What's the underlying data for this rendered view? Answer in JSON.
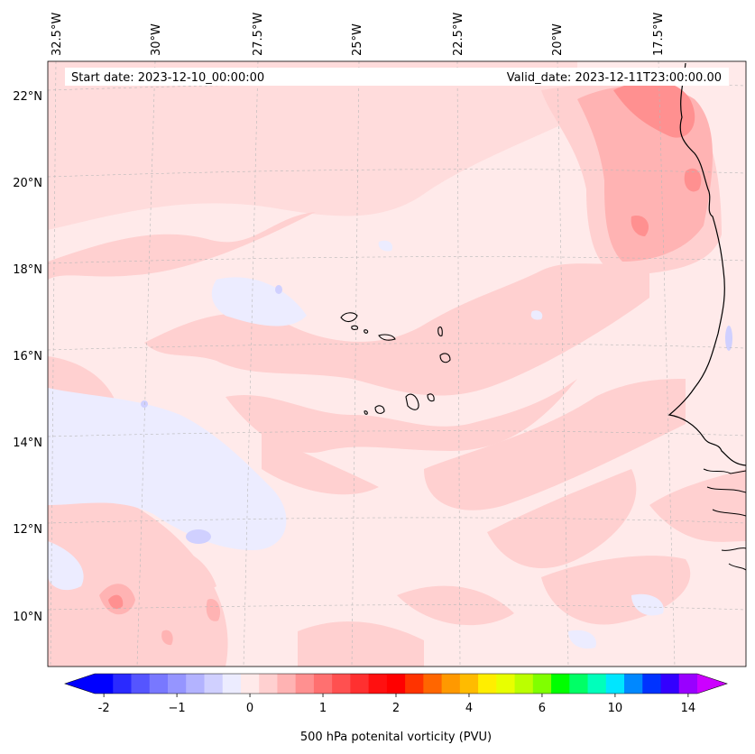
{
  "header": {
    "start_date": "Start date: 2023-12-10_00:00:00",
    "valid_date": "Valid_date: 2023-12-11T23:00:00.00"
  },
  "map": {
    "lon_labels": [
      "32.5°W",
      "30°W",
      "27.5°W",
      "25°W",
      "22.5°W",
      "20°W",
      "17.5°W"
    ],
    "lat_labels": [
      "22°N",
      "20°N",
      "18°N",
      "16°N",
      "14°N",
      "12°N",
      "10°N"
    ],
    "region": "Cabo Verde and West African coast"
  },
  "colorbar": {
    "label": "500 hPa potenital vorticity (PVU)",
    "ticks": [
      "-2",
      "−1",
      "0",
      "1",
      "2",
      "4",
      "6",
      "10",
      "14"
    ],
    "colors": [
      "#0000ff",
      "#2a2aff",
      "#5555ff",
      "#7878ff",
      "#9595ff",
      "#b3b3ff",
      "#d0d0ff",
      "#ececff",
      "#ffeaea",
      "#ffd0d0",
      "#ffb3b3",
      "#ff9090",
      "#ff7070",
      "#ff5050",
      "#ff3030",
      "#ff1010",
      "#ff0000",
      "#ff3300",
      "#ff6600",
      "#ff9900",
      "#ffbb00",
      "#ffee00",
      "#e8ff00",
      "#bbff00",
      "#80ff00",
      "#00ff00",
      "#00ff66",
      "#00ffbb",
      "#00e6ff",
      "#0088ff",
      "#0033ff",
      "#3300ff",
      "#9900ff"
    ],
    "extend_low_color": "#0000ff",
    "extend_high_color": "#cc00ff"
  }
}
